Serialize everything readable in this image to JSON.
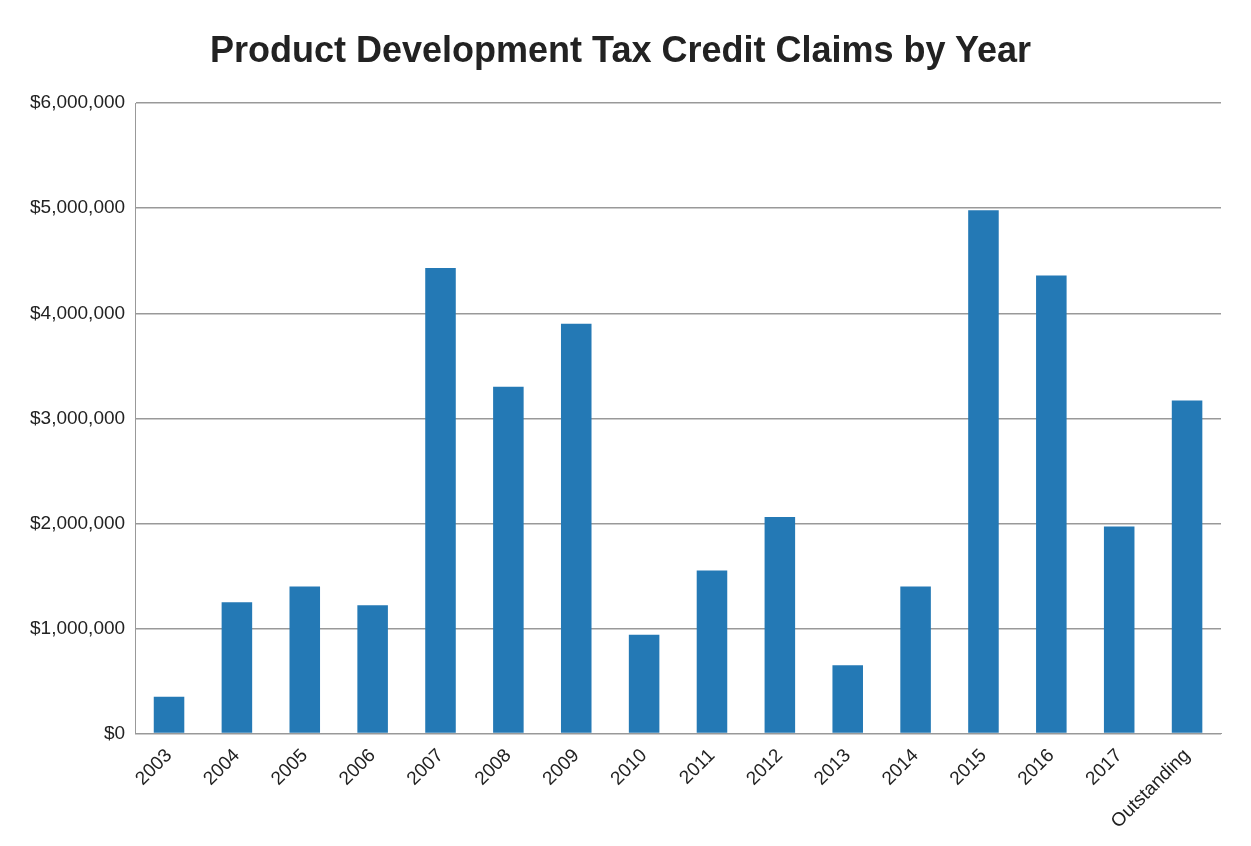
{
  "chart_data": {
    "type": "bar",
    "title": "Product Development Tax Credit Claims by Year",
    "categories": [
      "2003",
      "2004",
      "2005",
      "2006",
      "2007",
      "2008",
      "2009",
      "2010",
      "2011",
      "2012",
      "2013",
      "2014",
      "2015",
      "2016",
      "2017",
      "Outstanding"
    ],
    "values": [
      350000,
      1250000,
      1400000,
      1220000,
      4430000,
      3300000,
      3900000,
      940000,
      1550000,
      2060000,
      650000,
      1400000,
      4980000,
      4360000,
      1970000,
      3170000
    ],
    "color": "#2479b5",
    "ylim": [
      0,
      6000000
    ],
    "yticks": [
      {
        "value": 0,
        "label": "$0"
      },
      {
        "value": 1000000,
        "label": "$1,000,000"
      },
      {
        "value": 2000000,
        "label": "$2,000,000"
      },
      {
        "value": 3000000,
        "label": "$3,000,000"
      },
      {
        "value": 4000000,
        "label": "$4,000,000"
      },
      {
        "value": 5000000,
        "label": "$5,000,000"
      },
      {
        "value": 6000000,
        "label": "$6,000,000"
      }
    ],
    "grid": "y"
  }
}
